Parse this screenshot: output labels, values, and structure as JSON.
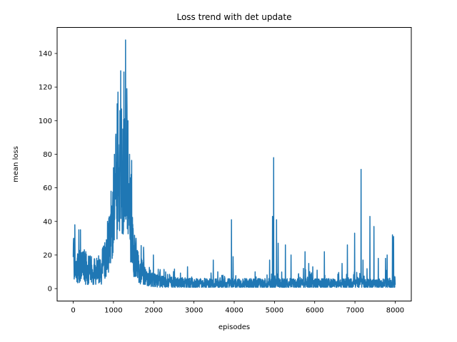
{
  "chart_data": {
    "type": "line",
    "title": "Loss trend with det update",
    "xlabel": "episodes",
    "ylabel": "mean loss",
    "xlim": [
      -400,
      8400
    ],
    "ylim": [
      -7.4,
      155.5
    ],
    "xticks": [
      0,
      1000,
      2000,
      3000,
      4000,
      5000,
      6000,
      7000,
      8000
    ],
    "yticks": [
      0,
      20,
      40,
      60,
      80,
      100,
      120,
      140
    ],
    "grid": false,
    "legend": "none",
    "x_range": [
      0,
      8000
    ],
    "series": [
      {
        "color": "#1f77b4",
        "baseline": [
          [
            0,
            18
          ],
          [
            100,
            14
          ],
          [
            200,
            13
          ],
          [
            300,
            11
          ],
          [
            400,
            10
          ],
          [
            500,
            10
          ],
          [
            600,
            11
          ],
          [
            700,
            13
          ],
          [
            800,
            18
          ],
          [
            900,
            27
          ],
          [
            1000,
            40
          ],
          [
            1100,
            55
          ],
          [
            1200,
            62
          ],
          [
            1300,
            60
          ],
          [
            1400,
            38
          ],
          [
            1500,
            22
          ],
          [
            1600,
            14
          ],
          [
            1700,
            10
          ],
          [
            1800,
            7
          ],
          [
            1900,
            6
          ],
          [
            2000,
            5
          ],
          [
            2200,
            4
          ],
          [
            2500,
            3.5
          ],
          [
            3000,
            3
          ],
          [
            3500,
            3
          ],
          [
            4000,
            3
          ],
          [
            5000,
            3
          ],
          [
            6000,
            3
          ],
          [
            7000,
            3
          ],
          [
            8000,
            3
          ]
        ],
        "spread": [
          [
            0,
            12
          ],
          [
            300,
            10
          ],
          [
            600,
            9
          ],
          [
            800,
            12
          ],
          [
            1000,
            22
          ],
          [
            1200,
            30
          ],
          [
            1300,
            28
          ],
          [
            1400,
            20
          ],
          [
            1600,
            10
          ],
          [
            1800,
            6
          ],
          [
            2000,
            4
          ],
          [
            2500,
            3.5
          ],
          [
            3000,
            3
          ],
          [
            8000,
            3
          ]
        ],
        "peaks": [
          [
            10,
            30
          ],
          [
            40,
            38
          ],
          [
            140,
            35
          ],
          [
            180,
            35
          ],
          [
            260,
            22
          ],
          [
            310,
            22
          ],
          [
            850,
            40
          ],
          [
            940,
            58
          ],
          [
            1000,
            72
          ],
          [
            1060,
            92
          ],
          [
            1090,
            110
          ],
          [
            1110,
            117
          ],
          [
            1160,
            106
          ],
          [
            1200,
            107
          ],
          [
            1230,
            95
          ],
          [
            1260,
            129
          ],
          [
            1300,
            148
          ],
          [
            1330,
            119
          ],
          [
            1360,
            100
          ],
          [
            1400,
            80
          ],
          [
            1440,
            68
          ],
          [
            1560,
            30
          ],
          [
            1750,
            22
          ],
          [
            1990,
            20
          ],
          [
            2150,
            10
          ],
          [
            2400,
            8
          ],
          [
            2840,
            13
          ],
          [
            3480,
            17
          ],
          [
            3720,
            8
          ],
          [
            3930,
            41
          ],
          [
            3970,
            19
          ],
          [
            4520,
            10
          ],
          [
            4880,
            17
          ],
          [
            4950,
            43
          ],
          [
            4980,
            78
          ],
          [
            5050,
            41
          ],
          [
            5090,
            27
          ],
          [
            5270,
            26
          ],
          [
            5410,
            20
          ],
          [
            5720,
            12
          ],
          [
            5760,
            22
          ],
          [
            5850,
            15
          ],
          [
            5950,
            13
          ],
          [
            6060,
            11
          ],
          [
            6240,
            22
          ],
          [
            6680,
            15
          ],
          [
            6810,
            26
          ],
          [
            6990,
            33
          ],
          [
            7150,
            71
          ],
          [
            7200,
            17
          ],
          [
            7370,
            43
          ],
          [
            7470,
            37
          ],
          [
            7580,
            18
          ],
          [
            7760,
            18
          ],
          [
            7800,
            20
          ],
          [
            7930,
            32
          ],
          [
            7960,
            31
          ],
          [
            7990,
            7
          ]
        ]
      }
    ]
  }
}
